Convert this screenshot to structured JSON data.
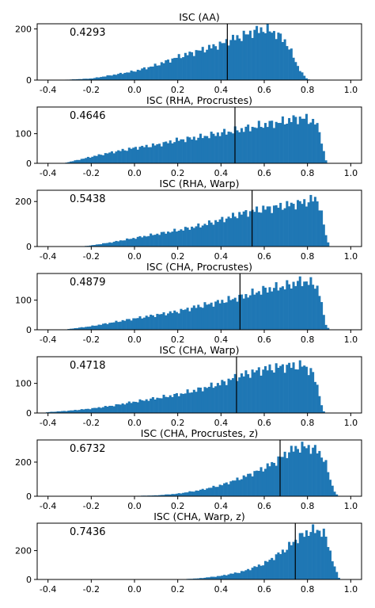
{
  "chart_data": [
    {
      "type": "histogram",
      "title": "ISC (AA)",
      "mean_label": "0.4293",
      "mean": 0.4293,
      "xlim": [
        -0.45,
        1.05
      ],
      "ylim": [
        0,
        220
      ],
      "x_ticks": [
        "-0.4",
        "-0.2",
        "0.0",
        "0.2",
        "0.4",
        "0.6",
        "0.8",
        "1.0"
      ],
      "y_ticks": [
        "0",
        "200"
      ],
      "profile": [
        [
          -0.38,
          0
        ],
        [
          -0.3,
          2
        ],
        [
          -0.2,
          6
        ],
        [
          -0.1,
          20
        ],
        [
          0.0,
          35
        ],
        [
          0.1,
          58
        ],
        [
          0.2,
          90
        ],
        [
          0.3,
          115
        ],
        [
          0.4,
          140
        ],
        [
          0.45,
          160
        ],
        [
          0.5,
          172
        ],
        [
          0.55,
          190
        ],
        [
          0.6,
          200
        ],
        [
          0.65,
          185
        ],
        [
          0.7,
          150
        ],
        [
          0.73,
          100
        ],
        [
          0.76,
          45
        ],
        [
          0.79,
          10
        ],
        [
          0.81,
          0
        ]
      ]
    },
    {
      "type": "histogram",
      "title": "ISC (RHA, Procrustes)",
      "mean_label": "0.4646",
      "mean": 0.4646,
      "xlim": [
        -0.45,
        1.05
      ],
      "ylim": [
        0,
        190
      ],
      "x_ticks": [
        "-0.4",
        "-0.2",
        "0.0",
        "0.2",
        "0.4",
        "0.6",
        "0.8",
        "1.0"
      ],
      "y_ticks": [
        "0",
        "100"
      ],
      "profile": [
        [
          -0.33,
          0
        ],
        [
          -0.3,
          5
        ],
        [
          -0.2,
          22
        ],
        [
          -0.1,
          38
        ],
        [
          0.0,
          52
        ],
        [
          0.1,
          62
        ],
        [
          0.2,
          78
        ],
        [
          0.3,
          88
        ],
        [
          0.4,
          102
        ],
        [
          0.45,
          108
        ],
        [
          0.5,
          115
        ],
        [
          0.6,
          130
        ],
        [
          0.7,
          142
        ],
        [
          0.75,
          152
        ],
        [
          0.8,
          150
        ],
        [
          0.84,
          135
        ],
        [
          0.86,
          95
        ],
        [
          0.88,
          20
        ],
        [
          0.89,
          0
        ]
      ]
    },
    {
      "type": "histogram",
      "title": "ISC (RHA, Warp)",
      "mean_label": "0.5438",
      "mean": 0.5438,
      "xlim": [
        -0.45,
        1.05
      ],
      "ylim": [
        0,
        250
      ],
      "x_ticks": [
        "-0.4",
        "-0.2",
        "0.0",
        "0.2",
        "0.4",
        "0.6",
        "0.8",
        "1.0"
      ],
      "y_ticks": [
        "0",
        "200"
      ],
      "profile": [
        [
          -0.25,
          0
        ],
        [
          -0.2,
          5
        ],
        [
          -0.1,
          20
        ],
        [
          0.0,
          38
        ],
        [
          0.1,
          55
        ],
        [
          0.2,
          72
        ],
        [
          0.3,
          92
        ],
        [
          0.4,
          118
        ],
        [
          0.5,
          148
        ],
        [
          0.6,
          168
        ],
        [
          0.7,
          182
        ],
        [
          0.8,
          200
        ],
        [
          0.84,
          215
        ],
        [
          0.86,
          170
        ],
        [
          0.88,
          70
        ],
        [
          0.9,
          0
        ]
      ]
    },
    {
      "type": "histogram",
      "title": "ISC (CHA, Procrustes)",
      "mean_label": "0.4879",
      "mean": 0.4879,
      "xlim": [
        -0.45,
        1.05
      ],
      "ylim": [
        0,
        190
      ],
      "x_ticks": [
        "-0.4",
        "-0.2",
        "0.0",
        "0.2",
        "0.4",
        "0.6",
        "0.8",
        "1.0"
      ],
      "y_ticks": [
        "0",
        "100"
      ],
      "profile": [
        [
          -0.32,
          0
        ],
        [
          -0.3,
          3
        ],
        [
          -0.2,
          12
        ],
        [
          -0.1,
          25
        ],
        [
          0.0,
          38
        ],
        [
          0.1,
          50
        ],
        [
          0.2,
          62
        ],
        [
          0.3,
          80
        ],
        [
          0.4,
          95
        ],
        [
          0.5,
          112
        ],
        [
          0.6,
          135
        ],
        [
          0.7,
          148
        ],
        [
          0.78,
          165
        ],
        [
          0.84,
          152
        ],
        [
          0.86,
          110
        ],
        [
          0.88,
          25
        ],
        [
          0.9,
          0
        ]
      ]
    },
    {
      "type": "histogram",
      "title": "ISC (CHA, Warp)",
      "mean_label": "0.4718",
      "mean": 0.4718,
      "xlim": [
        -0.45,
        1.05
      ],
      "ylim": [
        0,
        190
      ],
      "x_ticks": [
        "-0.4",
        "-0.2",
        "0.0",
        "0.2",
        "0.4",
        "0.6",
        "0.8",
        "1.0"
      ],
      "y_ticks": [
        "0",
        "100"
      ],
      "profile": [
        [
          -0.42,
          0
        ],
        [
          -0.4,
          3
        ],
        [
          -0.3,
          8
        ],
        [
          -0.2,
          15
        ],
        [
          -0.1,
          25
        ],
        [
          0.0,
          38
        ],
        [
          0.1,
          50
        ],
        [
          0.2,
          62
        ],
        [
          0.3,
          80
        ],
        [
          0.4,
          100
        ],
        [
          0.45,
          115
        ],
        [
          0.5,
          128
        ],
        [
          0.6,
          148
        ],
        [
          0.7,
          158
        ],
        [
          0.78,
          160
        ],
        [
          0.82,
          140
        ],
        [
          0.85,
          80
        ],
        [
          0.87,
          10
        ],
        [
          0.88,
          0
        ]
      ]
    },
    {
      "type": "histogram",
      "title": "ISC (CHA, Procrustes, z)",
      "mean_label": "0.6732",
      "mean": 0.6732,
      "xlim": [
        -0.45,
        1.05
      ],
      "ylim": [
        0,
        330
      ],
      "x_ticks": [
        "-0.4",
        "-0.2",
        "0.0",
        "0.2",
        "0.4",
        "0.6",
        "0.8",
        "1.0"
      ],
      "y_ticks": [
        "0",
        "200"
      ],
      "profile": [
        [
          -0.1,
          0
        ],
        [
          0.0,
          2
        ],
        [
          0.1,
          5
        ],
        [
          0.2,
          15
        ],
        [
          0.3,
          35
        ],
        [
          0.4,
          65
        ],
        [
          0.5,
          110
        ],
        [
          0.6,
          165
        ],
        [
          0.65,
          200
        ],
        [
          0.7,
          250
        ],
        [
          0.75,
          285
        ],
        [
          0.8,
          290
        ],
        [
          0.85,
          265
        ],
        [
          0.88,
          210
        ],
        [
          0.9,
          120
        ],
        [
          0.92,
          40
        ],
        [
          0.94,
          0
        ]
      ]
    },
    {
      "type": "histogram",
      "title": "ISC (CHA, Warp, z)",
      "mean_label": "0.7436",
      "mean": 0.7436,
      "xlim": [
        -0.45,
        1.05
      ],
      "ylim": [
        0,
        390
      ],
      "x_ticks": [
        "-0.4",
        "-0.2",
        "0.0",
        "0.2",
        "0.4",
        "0.6",
        "0.8",
        "1.0"
      ],
      "y_ticks": [
        "0",
        "200"
      ],
      "profile": [
        [
          0.2,
          0
        ],
        [
          0.3,
          8
        ],
        [
          0.4,
          25
        ],
        [
          0.5,
          55
        ],
        [
          0.6,
          110
        ],
        [
          0.7,
          210
        ],
        [
          0.75,
          280
        ],
        [
          0.8,
          330
        ],
        [
          0.85,
          345
        ],
        [
          0.88,
          310
        ],
        [
          0.9,
          220
        ],
        [
          0.92,
          110
        ],
        [
          0.94,
          25
        ],
        [
          0.95,
          0
        ]
      ]
    }
  ]
}
